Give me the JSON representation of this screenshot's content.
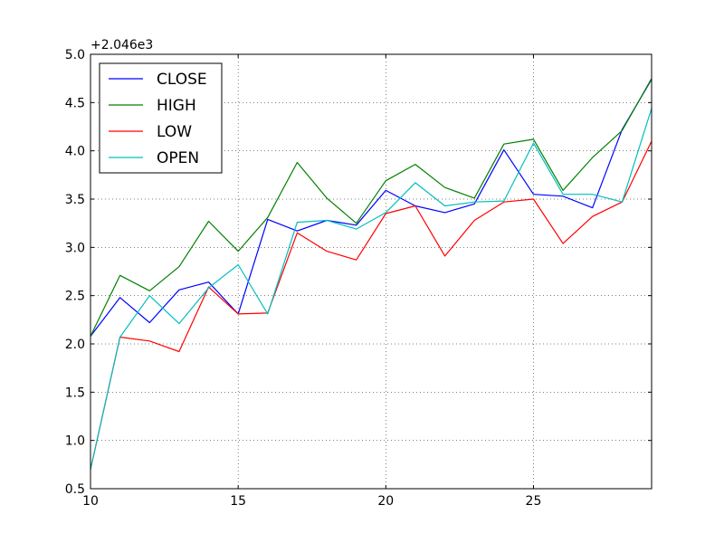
{
  "chart_data": {
    "type": "line",
    "offset_label": "+2.046e3",
    "x": [
      10,
      11,
      12,
      13,
      14,
      15,
      16,
      17,
      18,
      19,
      20,
      21,
      22,
      23,
      24,
      25,
      26,
      27,
      28,
      29
    ],
    "xlim": [
      10,
      29
    ],
    "ylim": [
      0.5,
      5.0
    ],
    "xticks": [
      {
        "value": 10,
        "label": "10"
      },
      {
        "value": 15,
        "label": "15"
      },
      {
        "value": 20,
        "label": "20"
      },
      {
        "value": 25,
        "label": "25"
      }
    ],
    "yticks": [
      {
        "value": 0.5,
        "label": "0.5"
      },
      {
        "value": 1.0,
        "label": "1.0"
      },
      {
        "value": 1.5,
        "label": "1.5"
      },
      {
        "value": 2.0,
        "label": "2.0"
      },
      {
        "value": 2.5,
        "label": "2.5"
      },
      {
        "value": 3.0,
        "label": "3.0"
      },
      {
        "value": 3.5,
        "label": "3.5"
      },
      {
        "value": 4.0,
        "label": "4.0"
      },
      {
        "value": 4.5,
        "label": "4.5"
      },
      {
        "value": 5.0,
        "label": "5.0"
      }
    ],
    "grid": true,
    "legend_position": "top-left",
    "series": [
      {
        "name": "CLOSE",
        "color": "#0000ff",
        "values": [
          2.08,
          2.48,
          2.22,
          2.56,
          2.64,
          2.31,
          3.29,
          3.17,
          3.28,
          3.23,
          3.59,
          3.43,
          3.36,
          3.45,
          4.01,
          3.55,
          3.53,
          3.41,
          4.22,
          4.74
        ]
      },
      {
        "name": "HIGH",
        "color": "#008000",
        "values": [
          2.08,
          2.71,
          2.55,
          2.8,
          3.27,
          2.96,
          3.31,
          3.88,
          3.51,
          3.25,
          3.69,
          3.86,
          3.62,
          3.51,
          4.07,
          4.12,
          3.59,
          3.93,
          4.21,
          4.75
        ]
      },
      {
        "name": "LOW",
        "color": "#ff0000",
        "values": [
          0.7,
          2.07,
          2.03,
          1.92,
          2.59,
          2.31,
          2.32,
          3.15,
          2.96,
          2.87,
          3.35,
          3.43,
          2.91,
          3.28,
          3.47,
          3.5,
          3.04,
          3.32,
          3.47,
          4.1
        ]
      },
      {
        "name": "OPEN",
        "color": "#00bfbf",
        "values": [
          0.7,
          2.07,
          2.5,
          2.21,
          2.58,
          2.82,
          2.31,
          3.26,
          3.28,
          3.19,
          3.36,
          3.67,
          3.43,
          3.47,
          3.48,
          4.08,
          3.55,
          3.55,
          3.47,
          4.44
        ]
      }
    ]
  }
}
